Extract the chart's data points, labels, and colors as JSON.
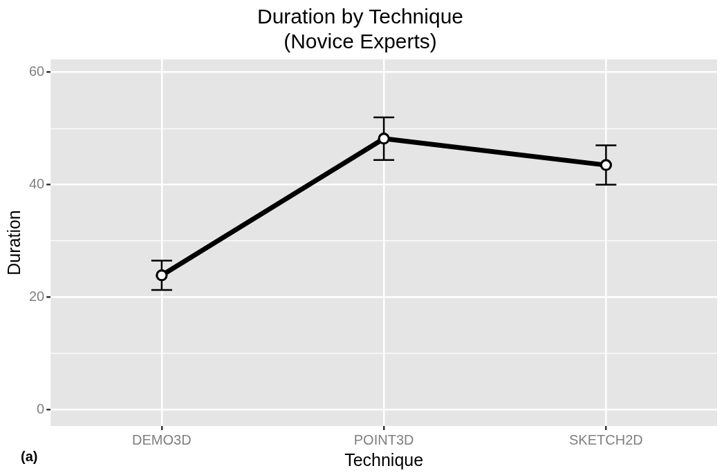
{
  "chart_data": {
    "type": "line",
    "title": "Duration by Technique",
    "subtitle": "(Novice Experts)",
    "xlabel": "Technique",
    "ylabel": "Duration",
    "categories": [
      "DEMO3D",
      "POINT3D",
      "SKETCH2D"
    ],
    "series": [
      {
        "color": "#000000",
        "values": [
          23.9,
          48.2,
          43.5
        ],
        "errors": [
          [
            21.3,
            26.5
          ],
          [
            44.4,
            52.0
          ],
          [
            40.0,
            47.0
          ]
        ]
      }
    ],
    "ylim": [
      -2.9,
      62.3
    ],
    "yticks": [
      0,
      {
        "value": 10,
        "label": null
      },
      20,
      {
        "value": 30,
        "label": null
      },
      40,
      {
        "value": 50,
        "label": null
      },
      60
    ],
    "grid": true,
    "legend": false,
    "marker": "circle",
    "line_style": "solid",
    "annotations": [
      "(a)"
    ]
  }
}
